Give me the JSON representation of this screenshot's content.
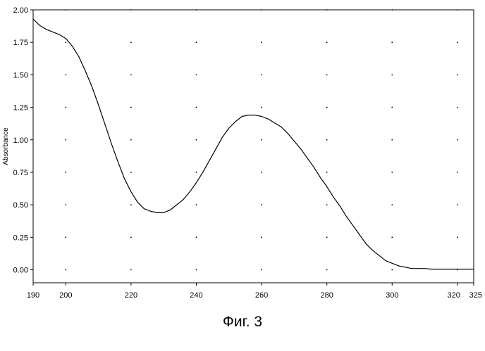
{
  "caption": "Фиг. 3",
  "chart_data": {
    "type": "line",
    "title": "",
    "xlabel": "",
    "ylabel": "Absorbance",
    "xlim": [
      190,
      325
    ],
    "ylim": [
      -0.1,
      2.0
    ],
    "x_ticks": [
      190,
      200,
      220,
      240,
      260,
      280,
      300,
      320,
      325
    ],
    "y_ticks": [
      0.0,
      0.25,
      0.5,
      0.75,
      1.0,
      1.25,
      1.5,
      1.75,
      2.0
    ],
    "x_tick_labels": [
      "190",
      "200",
      "220",
      "240",
      "260",
      "280",
      "300",
      "320",
      "325"
    ],
    "y_tick_labels": [
      "0.00",
      "0.25",
      "0.50",
      "0.75",
      "1.00",
      "1.25",
      "1.50",
      "1.75",
      "2.00"
    ],
    "grid": "dotted",
    "legend": "none",
    "series": [
      {
        "color": "#000000",
        "x": [
          190,
          192,
          194,
          196,
          198,
          200,
          202,
          204,
          206,
          208,
          210,
          212,
          214,
          216,
          218,
          220,
          222,
          224,
          226,
          228,
          230,
          232,
          234,
          236,
          238,
          240,
          242,
          244,
          246,
          248,
          250,
          252,
          254,
          256,
          258,
          260,
          262,
          264,
          266,
          268,
          270,
          272,
          274,
          276,
          278,
          280,
          282,
          284,
          286,
          288,
          290,
          292,
          294,
          296,
          298,
          300,
          302,
          304,
          306,
          308,
          310,
          312,
          314,
          316,
          318,
          320,
          322,
          325
        ],
        "y": [
          1.93,
          1.88,
          1.85,
          1.83,
          1.81,
          1.78,
          1.72,
          1.64,
          1.53,
          1.41,
          1.27,
          1.12,
          0.97,
          0.83,
          0.7,
          0.6,
          0.52,
          0.47,
          0.45,
          0.44,
          0.44,
          0.46,
          0.5,
          0.54,
          0.6,
          0.67,
          0.75,
          0.84,
          0.93,
          1.02,
          1.09,
          1.14,
          1.18,
          1.19,
          1.19,
          1.18,
          1.16,
          1.13,
          1.1,
          1.05,
          0.99,
          0.93,
          0.86,
          0.79,
          0.71,
          0.64,
          0.56,
          0.49,
          0.41,
          0.34,
          0.27,
          0.2,
          0.15,
          0.11,
          0.07,
          0.05,
          0.03,
          0.02,
          0.01,
          0.01,
          0.01,
          0.005,
          0.005,
          0.005,
          0.005,
          0.005,
          0.005,
          0.005
        ]
      }
    ]
  }
}
